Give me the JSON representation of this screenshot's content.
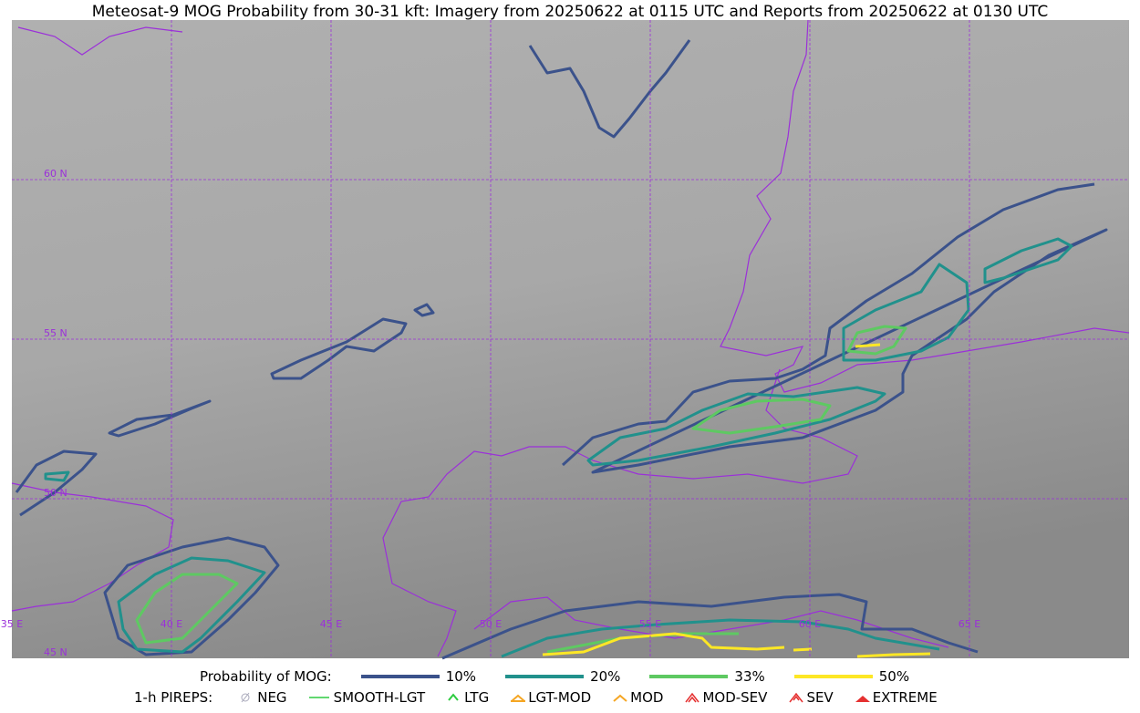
{
  "title": "Meteosat-9 MOG Probability from 30-31 kft: Imagery from 20250622 at 0115 UTC and Reports from 20250622 at 0130 UTC",
  "map": {
    "lat_labels": [
      "60 N",
      "55 N",
      "50 N",
      "45 N"
    ],
    "lon_labels": [
      "35 E",
      "40 E",
      "45 E",
      "50 E",
      "55 E",
      "60 E",
      "65 E"
    ]
  },
  "legend": {
    "mog_title": "Probability of MOG:",
    "mog_levels": [
      {
        "label": "10%",
        "color": "#3b528b"
      },
      {
        "label": "20%",
        "color": "#21918c"
      },
      {
        "label": "33%",
        "color": "#5ec962"
      },
      {
        "label": "50%",
        "color": "#fde725"
      }
    ],
    "pirep_title": "1-h PIREPS:",
    "pireps": [
      "NEG",
      "SMOOTH-LGT",
      "LTG",
      "LGT-MOD",
      "MOD",
      "MOD-SEV",
      "SEV",
      "EXTREME"
    ]
  }
}
